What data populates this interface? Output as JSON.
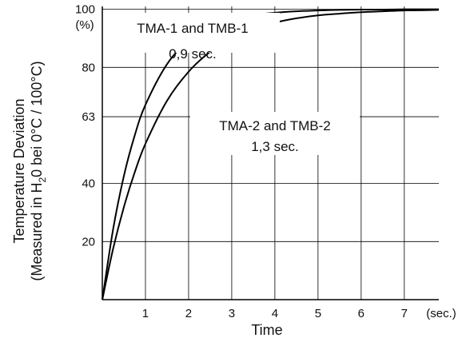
{
  "chart_data": {
    "type": "line",
    "xlabel": "Time",
    "ylabel_line1": "Temperature Deviation",
    "ylabel_line2_pre": "(Measured in H",
    "ylabel_line2_sub": "2",
    "ylabel_line2_post": "0 bei 0°C / 100°C)",
    "x_unit": "(sec.)",
    "y_unit": "(%)",
    "xlim": [
      0,
      7.8
    ],
    "ylim": [
      0,
      101
    ],
    "x_ticks": [
      "1",
      "2",
      "3",
      "4",
      "5",
      "6",
      "7"
    ],
    "y_ticks": [
      "20",
      "40",
      "63",
      "80",
      "100"
    ],
    "grid": true,
    "series": [
      {
        "name": "TMA-1 and TMB-1",
        "time_constant": "0,9 sec.",
        "x": [
          0,
          0.25,
          0.5,
          0.75,
          1,
          1.5,
          2,
          2.5,
          3,
          3.5,
          4,
          4.5,
          5,
          5.5,
          6,
          6.5,
          7,
          7.5,
          7.8
        ],
        "y": [
          0,
          24.2,
          42.6,
          56.5,
          67.1,
          81.1,
          89.2,
          93.8,
          96.4,
          98.0,
          98.8,
          99.3,
          99.6,
          99.8,
          99.9,
          99.9,
          100,
          100,
          100
        ]
      },
      {
        "name": "TMA-2 and TMB-2",
        "time_constant": "1,3 sec.",
        "x": [
          0,
          0.25,
          0.5,
          0.75,
          1,
          1.5,
          2,
          2.5,
          3,
          3.5,
          4,
          4.5,
          5,
          5.5,
          6,
          6.5,
          7,
          7.5,
          7.8
        ],
        "y": [
          0,
          17.5,
          31.9,
          43.8,
          53.7,
          68.5,
          78.5,
          85.4,
          90.1,
          93.2,
          95.4,
          96.9,
          97.9,
          98.5,
          99.0,
          99.3,
          99.6,
          99.7,
          99.8
        ]
      }
    ]
  }
}
